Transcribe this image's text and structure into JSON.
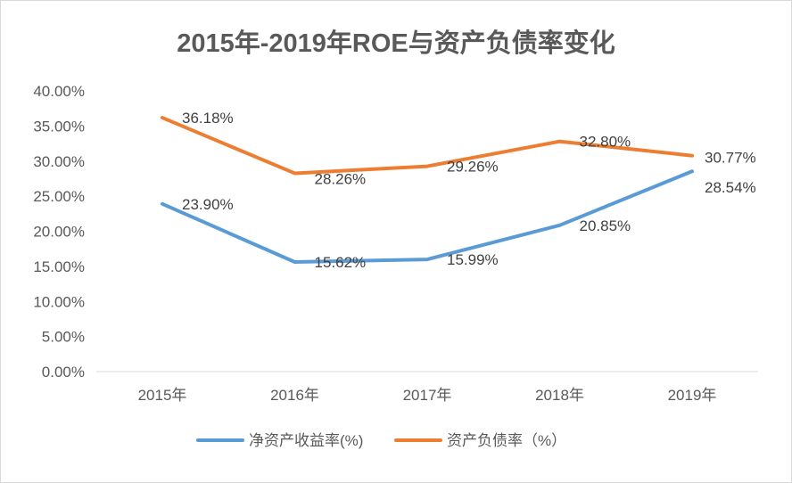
{
  "chart_data": {
    "type": "line",
    "title": "2015年-2019年ROE与资产负债率变化",
    "xlabel": "",
    "ylabel": "",
    "categories": [
      "2015年",
      "2016年",
      "2017年",
      "2018年",
      "2019年"
    ],
    "ylim": [
      0,
      40
    ],
    "yticks": [
      "0.00%",
      "5.00%",
      "10.00%",
      "15.00%",
      "20.00%",
      "25.00%",
      "30.00%",
      "35.00%",
      "40.00%"
    ],
    "grid": false,
    "legend_position": "bottom",
    "series": [
      {
        "name": "净资产收益率(%)",
        "color": "#5b9bd5",
        "values": [
          23.9,
          15.62,
          15.99,
          20.85,
          28.54
        ],
        "labels": [
          "23.90%",
          "15.62%",
          "15.99%",
          "20.85%",
          "28.54%"
        ]
      },
      {
        "name": "资产负债率（%）",
        "color": "#ed7d31",
        "values": [
          36.18,
          28.26,
          29.26,
          32.8,
          30.77
        ],
        "labels": [
          "36.18%",
          "28.26%",
          "29.26%",
          "32.80%",
          "30.77%"
        ]
      }
    ]
  }
}
